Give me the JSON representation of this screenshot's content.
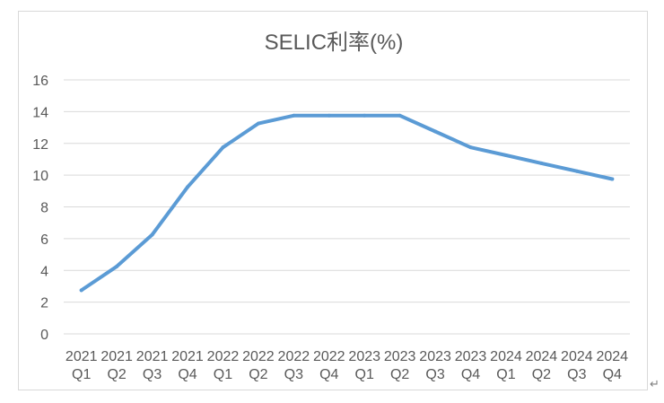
{
  "chart_data": {
    "type": "line",
    "title": "SELIC利率(%)",
    "xlabel": "",
    "ylabel": "",
    "ylim": [
      0,
      16
    ],
    "yticks": [
      0,
      2,
      4,
      6,
      8,
      10,
      12,
      14,
      16
    ],
    "grid": true,
    "legend": "none",
    "categories": [
      [
        "2021",
        "Q1"
      ],
      [
        "2021",
        "Q2"
      ],
      [
        "2021",
        "Q3"
      ],
      [
        "2021",
        "Q4"
      ],
      [
        "2022",
        "Q1"
      ],
      [
        "2022",
        "Q2"
      ],
      [
        "2022",
        "Q3"
      ],
      [
        "2022",
        "Q4"
      ],
      [
        "2023",
        "Q1"
      ],
      [
        "2023",
        "Q2"
      ],
      [
        "2023",
        "Q3"
      ],
      [
        "2023",
        "Q4"
      ],
      [
        "2024",
        "Q1"
      ],
      [
        "2024",
        "Q2"
      ],
      [
        "2024",
        "Q3"
      ],
      [
        "2024",
        "Q4"
      ]
    ],
    "series": [
      {
        "name": "SELIC利率(%)",
        "color": "#5b9bd5",
        "values": [
          2.75,
          4.25,
          6.25,
          9.25,
          11.75,
          13.25,
          13.75,
          13.75,
          13.75,
          13.75,
          12.75,
          11.75,
          11.25,
          10.75,
          10.25,
          9.75
        ]
      }
    ]
  },
  "return_mark": "↵"
}
